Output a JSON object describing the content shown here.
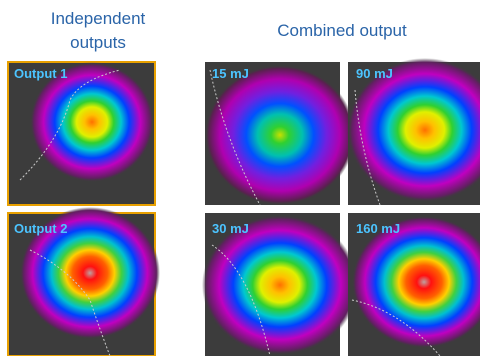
{
  "header": {
    "left_title": [
      "Independent",
      "outputs"
    ],
    "right_title": "Combined output"
  },
  "panels": [
    {
      "label": "Output 1"
    },
    {
      "label": "Output 2"
    },
    {
      "label": "15 mJ"
    },
    {
      "label": "90 mJ"
    },
    {
      "label": "30 mJ"
    },
    {
      "label": "160 mJ"
    }
  ]
}
